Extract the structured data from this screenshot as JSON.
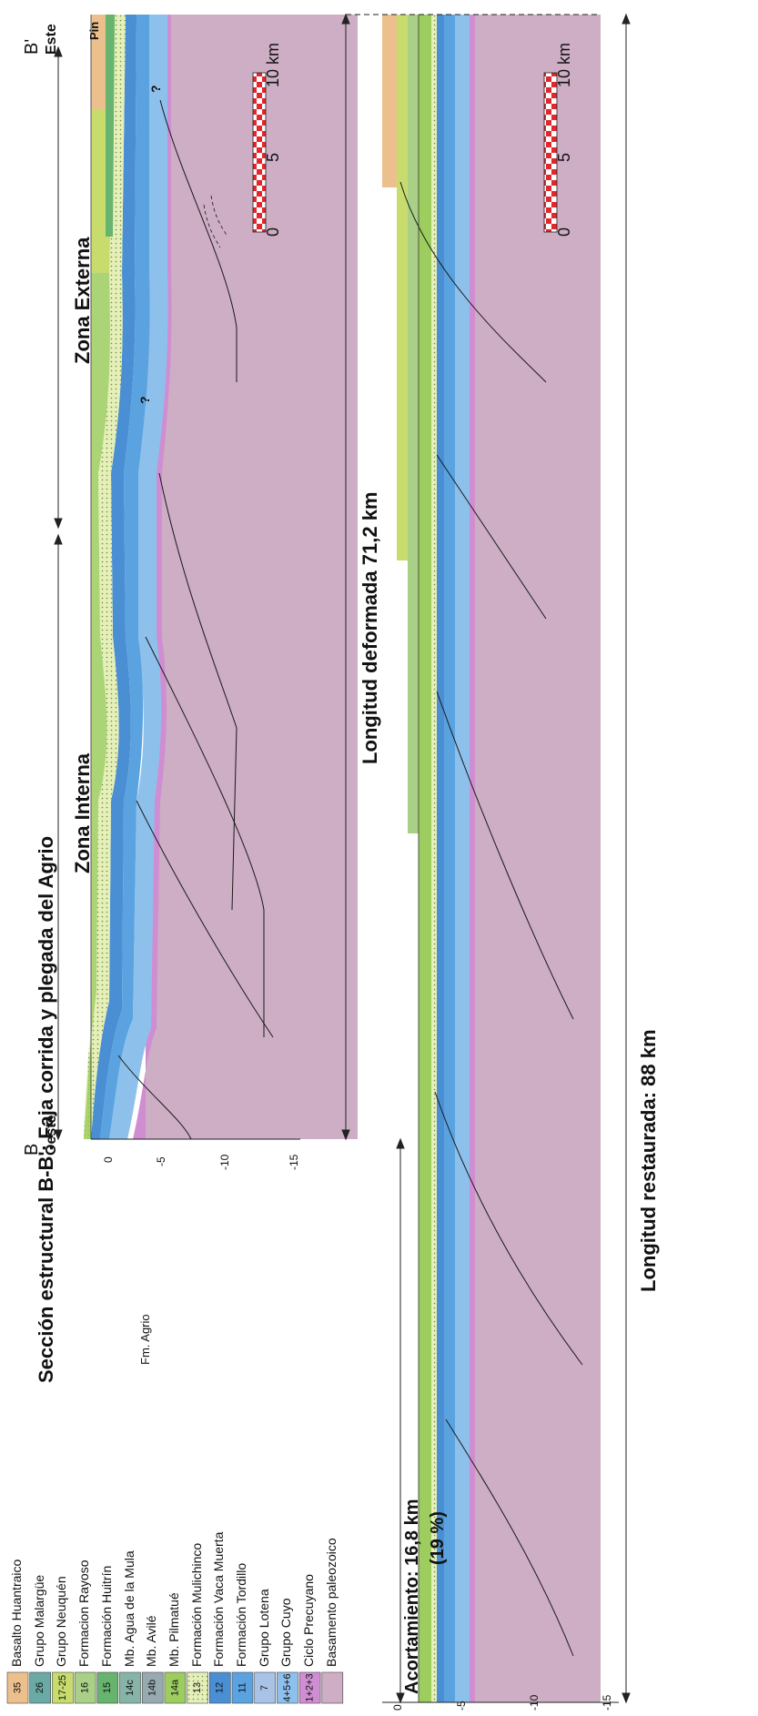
{
  "title": "Sección estructural B-B': Faja corrida y plegada del Agrio",
  "zones": {
    "interna": "Zona Interna",
    "externa": "Zona Externa"
  },
  "ends": {
    "left_letter": "B",
    "left_dir": "Oeste",
    "right_letter": "B'",
    "right_dir": "Este",
    "pin": "Pin"
  },
  "deformed_length": "Longitud deformada 71,2 km",
  "restored_length": "Longitud restaurada: 88 km",
  "shortening": {
    "line1": "Acortamiento: 16,8 km",
    "line2": "(19 %)"
  },
  "scale": {
    "ticks": [
      "0",
      "5",
      "10 km"
    ]
  },
  "depth_ticks": [
    "0",
    "-5",
    "-10",
    "-15"
  ],
  "question_mark": "?",
  "fm_agrio": "Fm. Agrio",
  "legend": [
    {
      "code": "35",
      "label": "Basalto Huantraico",
      "color": "#ecc08c"
    },
    {
      "code": "26",
      "label": "Grupo Malargüe",
      "color": "#6aa9a4"
    },
    {
      "code": "17-25",
      "label": "Grupo Neuquén",
      "color": "#c8dc6e"
    },
    {
      "code": "16",
      "label": "Formacion Rayoso",
      "color": "#a9d086"
    },
    {
      "code": "15",
      "label": "Formación Huitrín",
      "color": "#67b46e"
    },
    {
      "code": "14c",
      "label": "Mb. Agua de la Mula",
      "color": "#86b5a8"
    },
    {
      "code": "14b",
      "label": "Mb. Avilé",
      "color": "#96aab0"
    },
    {
      "code": "14a",
      "label": "Mb. Pilmatué",
      "color": "#9ccd5e"
    },
    {
      "code": "13",
      "label": "Formación Mulichinco",
      "color": "#e5efb9"
    },
    {
      "code": "12",
      "label": "Formación Vaca Muerta",
      "color": "#4a8fd3"
    },
    {
      "code": "11",
      "label": "Formación Tordillo",
      "color": "#5aa3e0"
    },
    {
      "code": "7",
      "label": "Grupo Lotena",
      "color": "#a9c3e6"
    },
    {
      "code": "4+5+6",
      "label": "Grupo Cuyo",
      "color": "#8ec0ec"
    },
    {
      "code": "1+2+3",
      "label": "Ciclo Precuyano",
      "color": "#d08ed2"
    },
    {
      "code": "",
      "label": "Basamento paleozoico",
      "color": "#cdaec4"
    }
  ]
}
